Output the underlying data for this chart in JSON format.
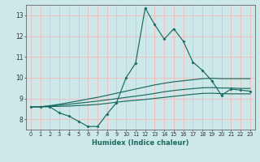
{
  "xlabel": "Humidex (Indice chaleur)",
  "background_color": "#cce8e8",
  "grid_color": "#f0c0c0",
  "line_color": "#1a6a60",
  "xlim": [
    -0.5,
    23.5
  ],
  "ylim": [
    7.5,
    13.5
  ],
  "yticks": [
    8,
    9,
    10,
    11,
    12,
    13
  ],
  "xticks": [
    0,
    1,
    2,
    3,
    4,
    5,
    6,
    7,
    8,
    9,
    10,
    11,
    12,
    13,
    14,
    15,
    16,
    17,
    18,
    19,
    20,
    21,
    22,
    23
  ],
  "series_main": [
    8.6,
    8.6,
    8.6,
    8.3,
    8.15,
    7.9,
    7.65,
    7.65,
    8.25,
    8.8,
    10.0,
    10.7,
    13.35,
    12.55,
    11.85,
    12.35,
    11.75,
    10.75,
    10.35,
    9.85,
    9.15,
    9.45,
    9.4,
    9.35
  ],
  "series_trend1": [
    8.6,
    8.6,
    8.65,
    8.72,
    8.8,
    8.88,
    8.97,
    9.05,
    9.15,
    9.25,
    9.35,
    9.45,
    9.55,
    9.65,
    9.73,
    9.8,
    9.85,
    9.9,
    9.95,
    9.97,
    9.95,
    9.95,
    9.95,
    9.95
  ],
  "series_trend2": [
    8.6,
    8.6,
    8.63,
    8.67,
    8.72,
    8.77,
    8.82,
    8.87,
    8.93,
    8.99,
    9.05,
    9.11,
    9.17,
    9.24,
    9.32,
    9.38,
    9.43,
    9.47,
    9.51,
    9.52,
    9.5,
    9.5,
    9.48,
    9.48
  ],
  "series_trend3": [
    8.6,
    8.6,
    8.61,
    8.62,
    8.63,
    8.66,
    8.68,
    8.71,
    8.76,
    8.82,
    8.87,
    8.91,
    8.95,
    9.0,
    9.05,
    9.1,
    9.15,
    9.2,
    9.24,
    9.25,
    9.23,
    9.22,
    9.22,
    9.22
  ]
}
